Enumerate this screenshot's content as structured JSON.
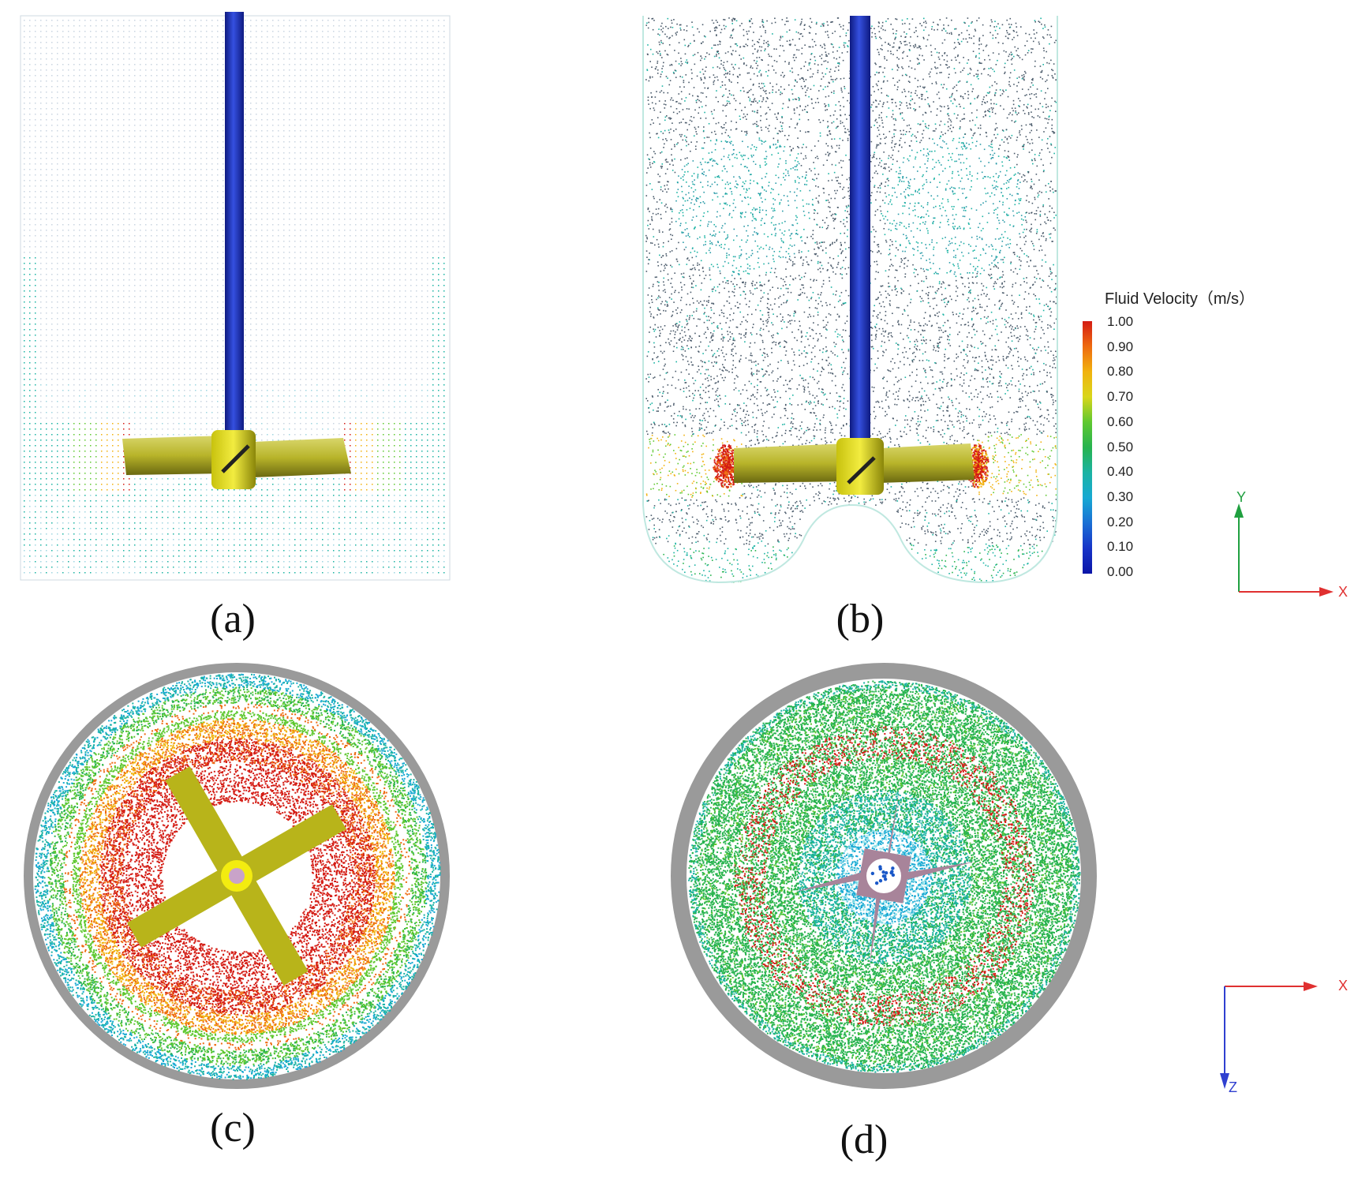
{
  "captions": {
    "a": "(a)",
    "b": "(b)",
    "c": "(c)",
    "d": "(d)"
  },
  "legend": {
    "title": "Fluid Velocity（m/s）",
    "ticks": [
      "1.00",
      "0.90",
      "0.80",
      "0.70",
      "0.60",
      "0.50",
      "0.40",
      "0.30",
      "0.20",
      "0.10",
      "0.00"
    ],
    "colors": [
      "#d41c14",
      "#ee6a10",
      "#f1b20e",
      "#d9d61a",
      "#5fc830",
      "#27b34f",
      "#1bb3a3",
      "#17a9d3",
      "#1a6fd4",
      "#1734c8",
      "#0b15a8"
    ]
  },
  "axes_side": {
    "x_label": "X",
    "y_label": "Y",
    "x_color": "#e03030",
    "y_color": "#20a040"
  },
  "axes_top": {
    "x_label": "X",
    "z_label": "Z",
    "x_color": "#e03030",
    "z_color": "#3040d0"
  }
}
